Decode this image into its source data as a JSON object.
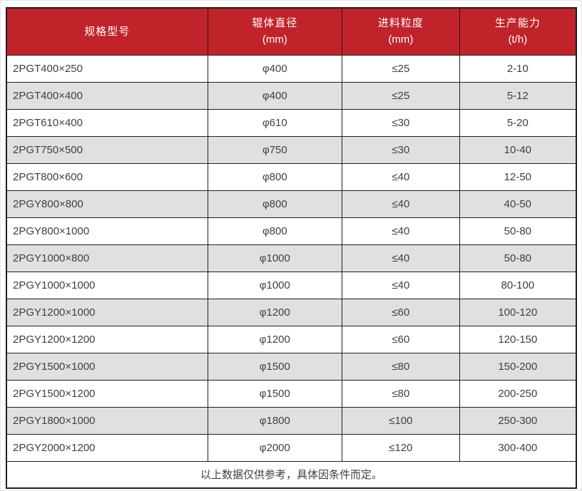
{
  "table": {
    "header": {
      "columns": [
        {
          "title": "规格型号",
          "unit": ""
        },
        {
          "title": "辊体直径",
          "unit": "(mm)"
        },
        {
          "title": "进料粒度",
          "unit": "(mm)"
        },
        {
          "title": "生产能力",
          "unit": "(t/h)"
        }
      ]
    },
    "rows": [
      {
        "model": "2PGT400×250",
        "diameter": "φ400",
        "feed": "≤25",
        "capacity": "2-10"
      },
      {
        "model": "2PGT400×400",
        "diameter": "φ400",
        "feed": "≤25",
        "capacity": "5-12"
      },
      {
        "model": "2PGT610×400",
        "diameter": "φ610",
        "feed": "≤30",
        "capacity": "5-20"
      },
      {
        "model": "2PGT750×500",
        "diameter": "φ750",
        "feed": "≤30",
        "capacity": "10-40"
      },
      {
        "model": "2PGT800×600",
        "diameter": "φ800",
        "feed": "≤40",
        "capacity": "12-50"
      },
      {
        "model": "2PGY800×800",
        "diameter": "φ800",
        "feed": "≤40",
        "capacity": "40-50"
      },
      {
        "model": "2PGY800×1000",
        "diameter": "φ800",
        "feed": "≤40",
        "capacity": "50-80"
      },
      {
        "model": "2PGY1000×800",
        "diameter": "φ1000",
        "feed": "≤40",
        "capacity": "50-80"
      },
      {
        "model": "2PGY1000×1000",
        "diameter": "φ1000",
        "feed": "≤40",
        "capacity": "80-100"
      },
      {
        "model": "2PGY1200×1000",
        "diameter": "φ1200",
        "feed": "≤60",
        "capacity": "100-120"
      },
      {
        "model": "2PGY1200×1200",
        "diameter": "φ1200",
        "feed": "≤60",
        "capacity": "120-150"
      },
      {
        "model": "2PGY1500×1000",
        "diameter": "φ1500",
        "feed": "≤80",
        "capacity": "150-200"
      },
      {
        "model": "2PGY1500×1200",
        "diameter": "φ1500",
        "feed": "≤80",
        "capacity": "200-250"
      },
      {
        "model": "2PGY1800×1000",
        "diameter": "φ1800",
        "feed": "≤100",
        "capacity": "250-300"
      },
      {
        "model": "2PGY2000×1200",
        "diameter": "φ2000",
        "feed": "≤120",
        "capacity": "300-400"
      }
    ],
    "footer_note": "以上数据仅供参考，具体因条件而定。"
  },
  "colors": {
    "header_bg": "#c1232b",
    "header_text": "#ffffff",
    "row_bg": "#ffffff",
    "row_alt_bg": "#e0e0e0",
    "border": "#1f1f1f",
    "text": "#3f3f3f"
  }
}
